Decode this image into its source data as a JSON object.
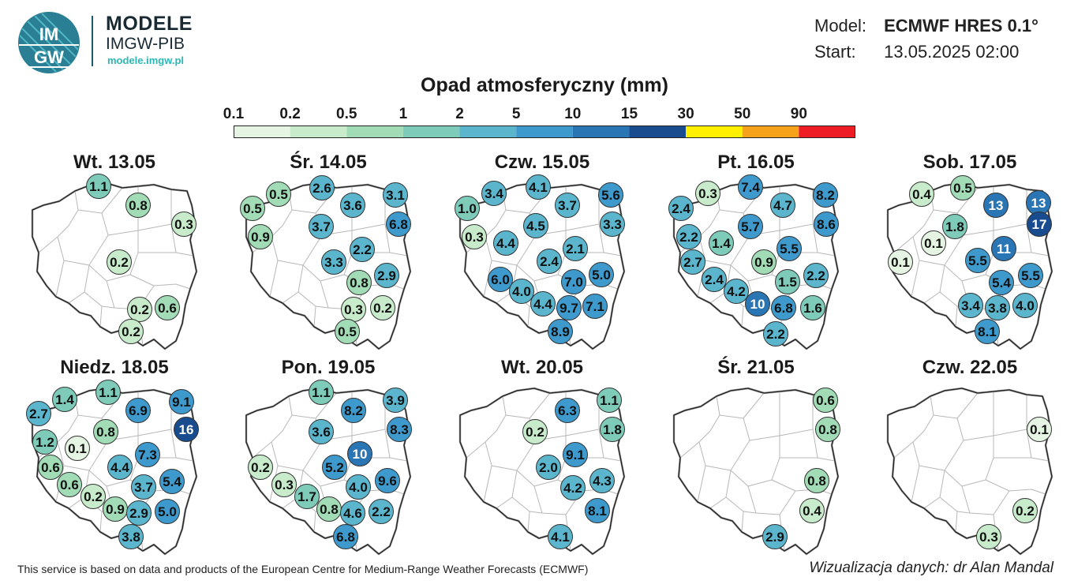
{
  "header": {
    "logo_text": "IMGW",
    "brand_title": "MODELE",
    "brand_subtitle": "IMGW-PIB",
    "brand_url": "modele.imgw.pl",
    "model_label": "Model:",
    "model_value": "ECMWF HRES 0.1°",
    "start_label": "Start:",
    "start_value": "13.05.2025 02:00"
  },
  "legend": {
    "title": "Opad atmosferyczny (mm)",
    "ticks": [
      "0.1",
      "0.2",
      "0.5",
      "1",
      "2",
      "5",
      "10",
      "15",
      "30",
      "50",
      "90"
    ],
    "colors": [
      "#e6f5e3",
      "#c8ebcb",
      "#a2dcb6",
      "#7ecbba",
      "#5bb5cc",
      "#3e99cd",
      "#2a75b3",
      "#194c8e",
      "#fff000",
      "#f7a21b",
      "#ee1c25"
    ]
  },
  "panels": [
    {
      "title": "Wt. 13.05",
      "values": [
        "1.1",
        "0.8",
        "0.3",
        "0.2",
        "0.2",
        "0.6",
        "0.2"
      ]
    },
    {
      "title": "Śr. 14.05",
      "values": [
        "0.5",
        "2.6",
        "3.1",
        "0.5",
        "3.6",
        "0.9",
        "3.7",
        "6.8",
        "2.2",
        "3.3",
        "2.9",
        "0.8",
        "0.3",
        "0.2",
        "0.5"
      ]
    },
    {
      "title": "Czw. 15.05",
      "values": [
        "3.4",
        "4.1",
        "5.6",
        "1.0",
        "3.7",
        "3.3",
        "0.3",
        "4.5",
        "4.4",
        "2.1",
        "2.4",
        "6.0",
        "5.0",
        "7.0",
        "4.0",
        "4.4",
        "9.7",
        "7.1",
        "8.9"
      ]
    },
    {
      "title": "Pt. 16.05",
      "values": [
        "7.4",
        "0.3",
        "8.2",
        "2.4",
        "4.7",
        "8.6",
        "2.2",
        "5.7",
        "1.4",
        "5.5",
        "2.7",
        "0.9",
        "2.2",
        "2.4",
        "1.5",
        "4.2",
        "10",
        "6.8",
        "1.6",
        "2.2"
      ]
    },
    {
      "title": "Sob. 17.05",
      "values": [
        "0.4",
        "0.5",
        "13",
        "13",
        "17",
        "1.8",
        "0.1",
        "11",
        "0.1",
        "5.5",
        "5.4",
        "5.5",
        "3.4",
        "3.8",
        "4.0",
        "8.1"
      ]
    },
    {
      "title": "Niedz. 18.05",
      "values": [
        "1.4",
        "1.1",
        "9.1",
        "2.7",
        "6.9",
        "16",
        "0.8",
        "1.2",
        "0.1",
        "7.3",
        "0.6",
        "4.4",
        "5.4",
        "0.6",
        "3.7",
        "0.2",
        "0.9",
        "2.9",
        "5.0",
        "3.8"
      ]
    },
    {
      "title": "Pon. 19.05",
      "values": [
        "1.1",
        "3.9",
        "8.2",
        "8.3",
        "3.6",
        "10",
        "0.2",
        "5.2",
        "0.3",
        "4.0",
        "9.6",
        "1.7",
        "0.8",
        "4.6",
        "2.2",
        "6.8"
      ]
    },
    {
      "title": "Wt. 20.05",
      "values": [
        "6.3",
        "1.1",
        "0.2",
        "1.8",
        "9.1",
        "2.0",
        "4.3",
        "4.2",
        "8.1",
        "4.1"
      ]
    },
    {
      "title": "Śr. 21.05",
      "values": [
        "0.6",
        "0.8",
        "0.8",
        "0.4",
        "2.9"
      ]
    },
    {
      "title": "Czw. 22.05",
      "values": [
        "0.1",
        "0.2",
        "0.3"
      ]
    }
  ],
  "footer": {
    "source_note": "This service is based on data and products of the European Centre for Medium-Range Weather Forecasts (ECMWF)",
    "credit": "Wizualizacja danych: dr Alan Mandal"
  }
}
